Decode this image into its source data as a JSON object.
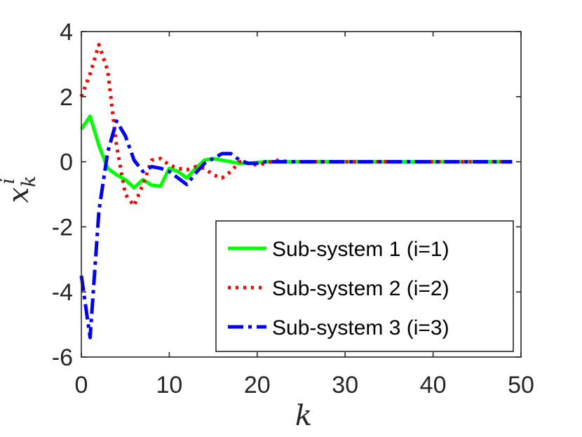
{
  "chart_data": {
    "type": "line",
    "xlabel": "k",
    "ylabel": {
      "base": "x",
      "superscript": "i",
      "subscript": "k"
    },
    "xlim": [
      0,
      50
    ],
    "ylim": [
      -6,
      4
    ],
    "xticks": [
      "0",
      "10",
      "20",
      "30",
      "40",
      "50"
    ],
    "yticks": [
      "4",
      "2",
      "0",
      "-2",
      "-4",
      "-6"
    ],
    "grid": false,
    "legend_position": "bottom-right",
    "series": [
      {
        "name": "Sub-system 1 (i=1)",
        "color": "#00ff00",
        "style": "solid",
        "x": [
          0,
          1,
          2,
          3,
          4,
          5,
          6,
          7,
          8,
          9,
          10,
          11,
          12,
          13,
          14,
          15,
          16,
          17,
          18,
          19,
          20,
          21,
          22,
          23,
          24,
          25,
          26,
          27,
          28,
          29,
          30,
          31,
          32,
          33,
          34,
          35,
          36,
          37,
          38,
          39,
          40,
          41,
          42,
          43,
          44,
          45,
          46,
          47,
          48,
          49
        ],
        "y": [
          1.0,
          1.4,
          0.5,
          -0.2,
          -0.4,
          -0.55,
          -0.8,
          -0.55,
          -0.72,
          -0.75,
          -0.2,
          -0.3,
          -0.5,
          -0.2,
          0.05,
          0.1,
          0.05,
          0.0,
          -0.05,
          -0.05,
          -0.02,
          0.0,
          0.0,
          0.0,
          0.0,
          0.0,
          0.0,
          0.0,
          0.0,
          0.0,
          0.0,
          0.0,
          0.0,
          0.0,
          0.0,
          0.0,
          0.0,
          0.0,
          0.0,
          0.0,
          0.0,
          0.0,
          0.0,
          0.0,
          0.0,
          0.0,
          0.0,
          0.0,
          0.0,
          0.0
        ]
      },
      {
        "name": "Sub-system 2 (i=2)",
        "color": "#ff0000",
        "style": "dotted",
        "x": [
          0,
          1,
          2,
          3,
          4,
          5,
          6,
          7,
          8,
          9,
          10,
          11,
          12,
          13,
          14,
          15,
          16,
          17,
          18,
          19,
          20,
          21,
          22,
          23,
          24,
          25,
          26,
          27,
          28,
          29,
          30,
          31,
          32,
          33,
          34,
          35,
          36,
          37,
          38,
          39,
          40,
          41,
          42,
          43,
          44,
          45,
          46,
          47,
          48,
          49
        ],
        "y": [
          2.0,
          2.7,
          3.6,
          2.8,
          0.5,
          -1.0,
          -1.35,
          -0.7,
          0.05,
          0.1,
          -0.1,
          -0.2,
          -0.25,
          -0.15,
          -0.2,
          -0.4,
          -0.5,
          -0.3,
          0.0,
          -0.05,
          -0.1,
          -0.05,
          0.05,
          0.02,
          0.0,
          0.0,
          0.0,
          0.0,
          0.0,
          0.0,
          0.0,
          0.0,
          0.0,
          0.0,
          0.0,
          0.0,
          0.0,
          0.0,
          0.0,
          0.0,
          0.0,
          0.0,
          0.0,
          0.0,
          0.0,
          0.0,
          0.0,
          0.0,
          0.0,
          0.0
        ]
      },
      {
        "name": "Sub-system 3 (i=3)",
        "color": "#0000ff",
        "style": "dashdot",
        "x": [
          0,
          1,
          2,
          3,
          4,
          5,
          6,
          7,
          8,
          9,
          10,
          11,
          12,
          13,
          14,
          15,
          16,
          17,
          18,
          19,
          20,
          21,
          22,
          23,
          24,
          25,
          26,
          27,
          28,
          29,
          30,
          31,
          32,
          33,
          34,
          35,
          36,
          37,
          38,
          39,
          40,
          41,
          42,
          43,
          44,
          45,
          46,
          47,
          48,
          49
        ],
        "y": [
          -3.5,
          -5.4,
          -1.5,
          0.3,
          1.25,
          0.8,
          0.05,
          -0.3,
          -0.15,
          -0.2,
          -0.3,
          -0.5,
          -0.7,
          -0.35,
          -0.05,
          0.1,
          0.25,
          0.25,
          0.05,
          -0.05,
          -0.05,
          0.0,
          0.0,
          0.0,
          0.0,
          0.0,
          0.0,
          0.0,
          0.0,
          0.0,
          0.0,
          0.0,
          0.0,
          0.0,
          0.0,
          0.0,
          0.0,
          0.0,
          0.0,
          0.0,
          0.0,
          0.0,
          0.0,
          0.0,
          0.0,
          0.0,
          0.0,
          0.0,
          0.0,
          0.0
        ]
      }
    ]
  }
}
